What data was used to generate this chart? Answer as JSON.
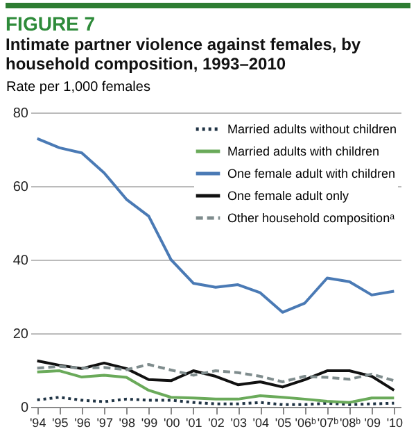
{
  "chart_data": {
    "type": "line",
    "title": "FIGURE 7",
    "subtitle": "Intimate partner violence against females, by household composition, 1993–2010",
    "ylabel": "Rate per 1,000 females",
    "categories": [
      "'94",
      "'95",
      "'96",
      "'97",
      "'98",
      "'99",
      "'00",
      "'01",
      "'02",
      "'03",
      "'04",
      "'05",
      "'06ᵇ",
      "'07ᵇ",
      "'08ᵇ",
      "'09",
      "'10"
    ],
    "series": [
      {
        "name": "Married adults without children",
        "color": "#1f3344",
        "line_style": "dotted",
        "values": [
          1.9,
          2.6,
          1.8,
          1.4,
          2.1,
          1.8,
          1.8,
          1.2,
          0.8,
          0.8,
          1.2,
          0.6,
          0.6,
          1.0,
          0.6,
          0.8,
          1.0
        ]
      },
      {
        "name": "Married adults with children",
        "color": "#6aaa5a",
        "line_style": "solid",
        "values": [
          9.5,
          9.8,
          8.1,
          8.6,
          8.0,
          4.5,
          2.6,
          2.4,
          2.1,
          2.1,
          3.0,
          2.6,
          2.1,
          1.5,
          1.2,
          2.4,
          2.4
        ]
      },
      {
        "name": "One female adult with children",
        "color": "#4a7ab5",
        "line_style": "solid",
        "values": [
          72.9,
          70.4,
          69.0,
          63.6,
          56.4,
          51.8,
          40.0,
          33.6,
          32.5,
          33.2,
          31.0,
          25.7,
          28.2,
          35.0,
          34.0,
          30.4,
          31.4
        ]
      },
      {
        "name": "One female adult only",
        "color": "#111111",
        "line_style": "solid",
        "values": [
          12.5,
          11.3,
          10.4,
          11.9,
          10.4,
          7.4,
          7.1,
          9.8,
          8.3,
          6.0,
          6.8,
          5.4,
          7.4,
          9.8,
          9.8,
          8.3,
          4.5
        ]
      },
      {
        "name": "Other household compositionᵃ",
        "color": "#7f8c8d",
        "line_style": "dashed",
        "values": [
          10.5,
          11.0,
          10.5,
          10.7,
          10.1,
          11.5,
          10.0,
          8.6,
          9.8,
          9.3,
          8.3,
          6.8,
          8.3,
          8.0,
          7.5,
          8.9,
          7.1
        ]
      }
    ],
    "ylim": [
      0,
      80
    ],
    "yticks": [
      0,
      20,
      40,
      60,
      80
    ],
    "grid": "y",
    "legend": "top right"
  }
}
